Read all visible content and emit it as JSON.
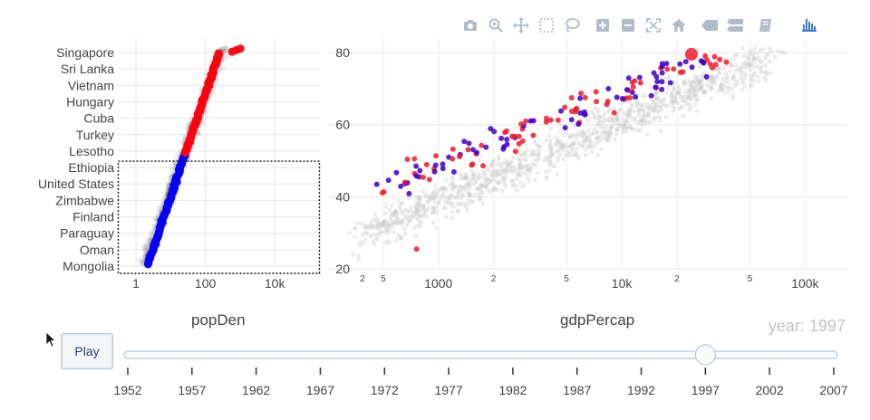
{
  "modebar": {
    "icons": [
      "camera-icon",
      "zoom-icon",
      "pan-icon",
      "box-select-icon",
      "lasso-icon",
      "zoom-in-icon",
      "zoom-out-icon",
      "autoscale-icon",
      "reset-axes-icon",
      "hover-closest-icon",
      "hover-compare-icon",
      "edit-in-chart-studio-icon",
      "plotly-logo-icon"
    ],
    "icon_color": "#b0bccc",
    "logo_color": "#3f7ac6"
  },
  "controls": {
    "play_label": "Play",
    "year_prefix": "year:",
    "year_value": "1997"
  },
  "slider": {
    "steps": [
      "1952",
      "1957",
      "1962",
      "1967",
      "1972",
      "1977",
      "1982",
      "1987",
      "1992",
      "1997",
      "2002",
      "2007"
    ],
    "active_index": 9
  },
  "chart_data": [
    {
      "type": "scatter",
      "xlabel": "popDen",
      "xscale": "log",
      "xlim": [
        0.3,
        200000
      ],
      "xticks": [
        {
          "v": 1,
          "label": "1"
        },
        {
          "v": 100,
          "label": "100"
        },
        {
          "v": 10000,
          "label": "10k"
        }
      ],
      "yticks": [
        "Singapore",
        "Sri Lanka",
        "Vietnam",
        "Hungary",
        "Cuba",
        "Turkey",
        "Lesotho",
        "Ethiopia",
        "United States",
        "Zimbabwe",
        "Finland",
        "Paraguay",
        "Oman",
        "Mongolia"
      ],
      "y_rank_range": [
        0,
        140
      ],
      "selection": {
        "y_from": "Ethiopia",
        "y_to": "Mongolia"
      },
      "colors": {
        "selected": "#0a00f5",
        "other": "#ff0010",
        "background": "#444444"
      }
    },
    {
      "type": "scatter",
      "xlabel": "gdpPercap",
      "xscale": "log",
      "xlim": [
        250,
        170000
      ],
      "ylim": [
        20,
        84
      ],
      "xticks": [
        {
          "v": 200,
          "label": "2"
        },
        {
          "v": 500,
          "label": "5"
        },
        {
          "v": 1000,
          "label": "1000"
        },
        {
          "v": 2000,
          "label": "2"
        },
        {
          "v": 5000,
          "label": "5"
        },
        {
          "v": 10000,
          "label": "10k"
        },
        {
          "v": 20000,
          "label": "2"
        },
        {
          "v": 50000,
          "label": "5"
        },
        {
          "v": 100000,
          "label": "100k"
        }
      ],
      "yticks": [
        20,
        40,
        60,
        80
      ],
      "colors": {
        "selected": "#3d00c8",
        "other": "#ee1c2e",
        "background": "#cccccc"
      }
    }
  ]
}
